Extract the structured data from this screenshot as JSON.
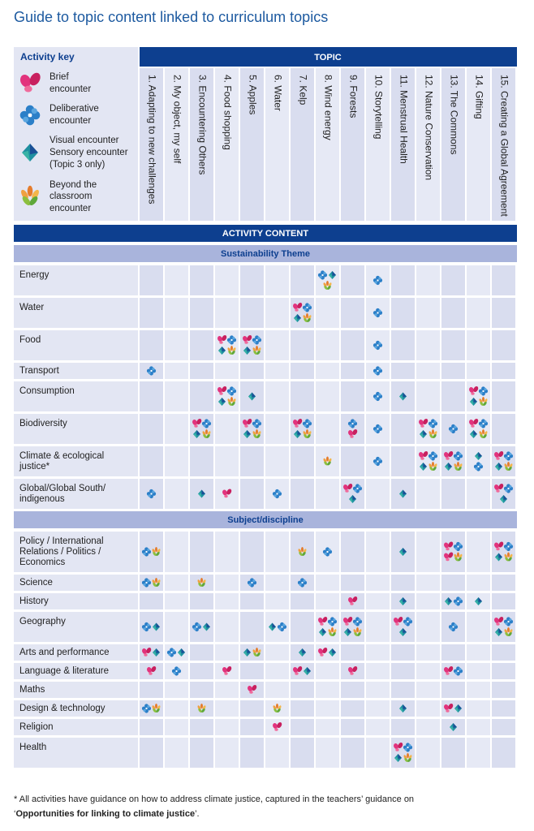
{
  "title": "Guide to topic content linked to curriculum topics",
  "activity_key": {
    "title": "Activity key",
    "items": [
      {
        "lines": [
          "Brief",
          "encounter"
        ]
      },
      {
        "lines": [
          "Deliberative",
          "encounter"
        ]
      },
      {
        "lines": [
          "Visual encounter",
          "Sensory encounter",
          "(Topic 3 only)"
        ]
      },
      {
        "lines": [
          "Beyond the",
          "classroom",
          "encounter"
        ]
      }
    ]
  },
  "topic_header": "TOPIC",
  "topics": [
    "1. Adapting to new challenges",
    "2. My object, my self",
    "3. Encountering Others",
    "4. Food shopping",
    "5. Apples",
    "6. Water",
    "7. Kelp",
    "8. Wind energy",
    "9. Forests",
    "10. Storytelling",
    "11. Menstrual Health",
    "12. Nature Conservation",
    "13. The Commons",
    "14. Gifting",
    "15. Creating a Global Agreement"
  ],
  "content_header": "ACTIVITY CONTENT",
  "sections": [
    {
      "title": "Sustainability Theme",
      "rows": [
        {
          "lines": [
            "Energy"
          ],
          "cells": [
            [],
            [],
            [],
            [],
            [],
            [],
            [],
            [
              [
                1,
                2
              ],
              [
                3
              ]
            ],
            [],
            [
              [
                1
              ]
            ],
            [],
            [],
            [],
            [],
            []
          ]
        },
        {
          "lines": [
            "Water"
          ],
          "cells": [
            [],
            [],
            [],
            [],
            [],
            [],
            [
              [
                0,
                1
              ],
              [
                2,
                3
              ]
            ],
            [],
            [],
            [
              [
                1
              ]
            ],
            [],
            [],
            [],
            [],
            []
          ]
        },
        {
          "lines": [
            "Food"
          ],
          "cells": [
            [],
            [],
            [],
            [
              [
                0,
                1
              ],
              [
                2,
                3
              ]
            ],
            [
              [
                0,
                1
              ],
              [
                2,
                3
              ]
            ],
            [],
            [],
            [],
            [],
            [
              [
                1
              ]
            ],
            [],
            [],
            [],
            [],
            []
          ]
        },
        {
          "lines": [
            "Transport"
          ],
          "cells": [
            [
              [
                1
              ]
            ],
            [],
            [],
            [],
            [],
            [],
            [],
            [],
            [],
            [
              [
                1
              ]
            ],
            [],
            [],
            [],
            [],
            []
          ]
        },
        {
          "lines": [
            "Consumption"
          ],
          "cells": [
            [],
            [],
            [],
            [
              [
                0,
                1
              ],
              [
                2,
                3
              ]
            ],
            [
              [
                2
              ]
            ],
            [],
            [],
            [],
            [],
            [
              [
                1
              ]
            ],
            [
              [
                2
              ]
            ],
            [],
            [],
            [
              [
                0,
                1
              ],
              [
                2,
                3
              ]
            ],
            []
          ]
        },
        {
          "lines": [
            "Biodiversity"
          ],
          "cells": [
            [],
            [],
            [
              [
                0,
                1
              ],
              [
                2,
                3
              ]
            ],
            [],
            [
              [
                0,
                1
              ],
              [
                2,
                3
              ]
            ],
            [],
            [
              [
                0,
                1
              ],
              [
                2,
                3
              ]
            ],
            [],
            [
              [
                1
              ],
              [
                0
              ]
            ],
            [
              [
                1
              ]
            ],
            [],
            [
              [
                0,
                1
              ],
              [
                2,
                3
              ]
            ],
            [
              [
                1
              ]
            ],
            [
              [
                0,
                1
              ],
              [
                2,
                3
              ]
            ],
            []
          ]
        },
        {
          "lines": [
            "Climate & ecological",
            "justice*"
          ],
          "cells": [
            [],
            [],
            [],
            [],
            [],
            [],
            [],
            [
              [
                3
              ]
            ],
            [],
            [
              [
                1
              ]
            ],
            [],
            [
              [
                0,
                1
              ],
              [
                2,
                3
              ]
            ],
            [
              [
                0,
                1
              ],
              [
                2,
                3
              ]
            ],
            [
              [
                2
              ],
              [
                1
              ]
            ],
            [
              [
                0,
                1
              ],
              [
                2,
                3
              ]
            ]
          ]
        },
        {
          "lines": [
            "Global/Global South/",
            "indigenous"
          ],
          "cells": [
            [
              [
                1
              ]
            ],
            [],
            [
              [
                2
              ]
            ],
            [
              [
                0
              ]
            ],
            [],
            [
              [
                1
              ]
            ],
            [],
            [],
            [
              [
                0,
                1
              ],
              [
                2
              ]
            ],
            [],
            [
              [
                2
              ]
            ],
            [],
            [],
            [],
            [
              [
                0,
                1
              ],
              [
                2
              ]
            ]
          ]
        }
      ]
    },
    {
      "title": "Subject/discipline",
      "rows": [
        {
          "lines": [
            "Policy / International",
            "Relations / Politics /",
            "Economics"
          ],
          "cells": [
            [
              [
                1,
                3
              ]
            ],
            [],
            [],
            [],
            [],
            [],
            [
              [
                3
              ]
            ],
            [
              [
                1
              ]
            ],
            [],
            [],
            [
              [
                2
              ]
            ],
            [],
            [
              [
                0,
                1
              ],
              [
                0,
                3
              ]
            ],
            [],
            [
              [
                0,
                1
              ],
              [
                2,
                3
              ]
            ]
          ]
        },
        {
          "lines": [
            "Science"
          ],
          "cells": [
            [
              [
                1,
                3
              ]
            ],
            [],
            [
              [
                3
              ]
            ],
            [],
            [
              [
                1
              ]
            ],
            [],
            [
              [
                1
              ]
            ],
            [],
            [],
            [],
            [],
            [],
            [],
            [],
            []
          ]
        },
        {
          "lines": [
            "History"
          ],
          "cells": [
            [],
            [],
            [],
            [],
            [],
            [],
            [],
            [],
            [
              [
                0
              ]
            ],
            [],
            [
              [
                2
              ]
            ],
            [],
            [
              [
                2,
                1
              ]
            ],
            [
              [
                2
              ]
            ],
            []
          ]
        },
        {
          "lines": [
            "Geography"
          ],
          "cells": [
            [
              [
                1,
                2
              ]
            ],
            [],
            [
              [
                1,
                2
              ]
            ],
            [],
            [],
            [
              [
                2,
                1
              ]
            ],
            [],
            [
              [
                0,
                1
              ],
              [
                2,
                3
              ]
            ],
            [
              [
                0,
                1
              ],
              [
                2,
                3
              ]
            ],
            [],
            [
              [
                0,
                1
              ],
              [
                2
              ]
            ],
            [],
            [
              [
                1
              ]
            ],
            [],
            [
              [
                0,
                1
              ],
              [
                2,
                3
              ]
            ]
          ]
        },
        {
          "lines": [
            "Arts and performance"
          ],
          "cells": [
            [
              [
                0,
                2
              ]
            ],
            [
              [
                1,
                2
              ]
            ],
            [],
            [],
            [
              [
                2,
                3
              ]
            ],
            [],
            [
              [
                2
              ]
            ],
            [
              [
                0,
                2
              ]
            ],
            [],
            [],
            [],
            [],
            [],
            [],
            []
          ]
        },
        {
          "lines": [
            "Language & literature"
          ],
          "cells": [
            [
              [
                0
              ]
            ],
            [
              [
                1
              ]
            ],
            [],
            [
              [
                0
              ]
            ],
            [],
            [],
            [
              [
                0,
                2
              ]
            ],
            [],
            [
              [
                0
              ]
            ],
            [],
            [],
            [],
            [
              [
                0,
                1
              ]
            ],
            [],
            []
          ]
        },
        {
          "lines": [
            "Maths"
          ],
          "cells": [
            [],
            [],
            [],
            [],
            [
              [
                0
              ]
            ],
            [],
            [],
            [],
            [],
            [],
            [],
            [],
            [],
            [],
            []
          ]
        },
        {
          "lines": [
            "Design & technology"
          ],
          "cells": [
            [
              [
                1,
                3
              ]
            ],
            [],
            [
              [
                3
              ]
            ],
            [],
            [],
            [
              [
                3
              ]
            ],
            [],
            [],
            [],
            [],
            [
              [
                2
              ]
            ],
            [],
            [
              [
                0,
                2
              ]
            ],
            [],
            []
          ]
        },
        {
          "lines": [
            "Religion"
          ],
          "cells": [
            [],
            [],
            [],
            [],
            [],
            [
              [
                0
              ]
            ],
            [],
            [],
            [],
            [],
            [],
            [],
            [
              [
                2
              ]
            ],
            [],
            []
          ]
        },
        {
          "lines": [
            "Health"
          ],
          "cells": [
            [],
            [],
            [],
            [],
            [],
            [],
            [],
            [],
            [],
            [],
            [
              [
                0,
                1
              ],
              [
                2,
                3
              ]
            ],
            [],
            [],
            [],
            []
          ]
        }
      ]
    }
  ],
  "footnote": {
    "line1": "* All activities have guidance on how to address climate justice, captured in the teachers’ guidance on",
    "prefix": "‘",
    "bold": "Opportunities for linking to climate justice",
    "suffix": "’."
  }
}
